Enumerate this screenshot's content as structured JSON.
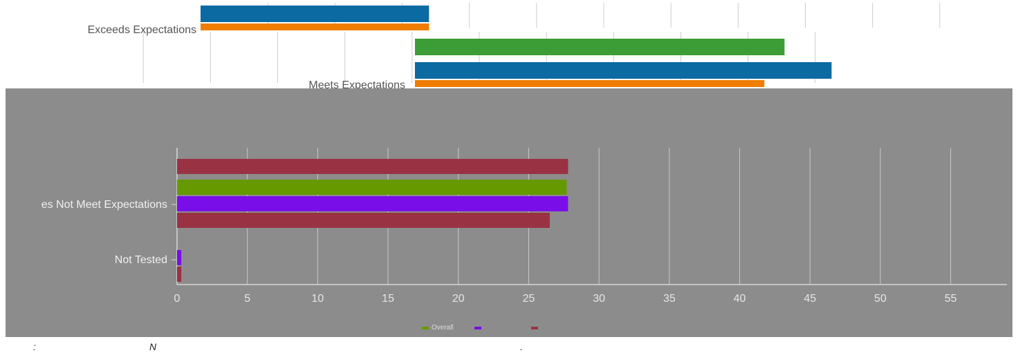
{
  "chart_data": [
    {
      "type": "bar",
      "orientation": "horizontal",
      "categories": [
        "Exceeds Expectations",
        "Meets Expectations"
      ],
      "series": [
        {
          "values": [
            17,
            null
          ],
          "color": "#0a6aa1"
        },
        {
          "values": [
            null,
            27.5
          ],
          "color": "#3c9d36"
        },
        {
          "values": [
            null,
            31
          ],
          "color": "#0a6aa1"
        },
        {
          "values": [
            17,
            26
          ],
          "color": "#ef7d00"
        }
      ],
      "xlim": [
        0,
        60
      ],
      "grid": true
    },
    {
      "type": "bar",
      "orientation": "horizontal",
      "categories": [
        "Does Not Meet Expectations",
        "Not Tested"
      ],
      "category_labels": [
        "es Not Meet Expectations",
        "Not Tested"
      ],
      "series": [
        {
          "name": "Overall",
          "values": [
            27.7,
            null
          ],
          "color": "#669900"
        },
        {
          "values": [
            27.8,
            0.3
          ],
          "color": "#7a0ee8"
        },
        {
          "values": [
            27.8,
            0.3
          ],
          "color": "#993344"
        },
        {
          "values": [
            26.5,
            null
          ],
          "color": "#993344"
        }
      ],
      "xlim": [
        0,
        59
      ],
      "xticks": [
        0,
        5,
        10,
        15,
        20,
        25,
        30,
        35,
        40,
        45,
        50,
        55
      ],
      "grid": true,
      "legend": {
        "position": "bottom",
        "entries": [
          "Overall"
        ]
      }
    }
  ],
  "footnote": [
    ":",
    "N",
    "."
  ],
  "colors": {
    "panel": "#8c8c8c",
    "gridline": "#c8c8c8"
  }
}
